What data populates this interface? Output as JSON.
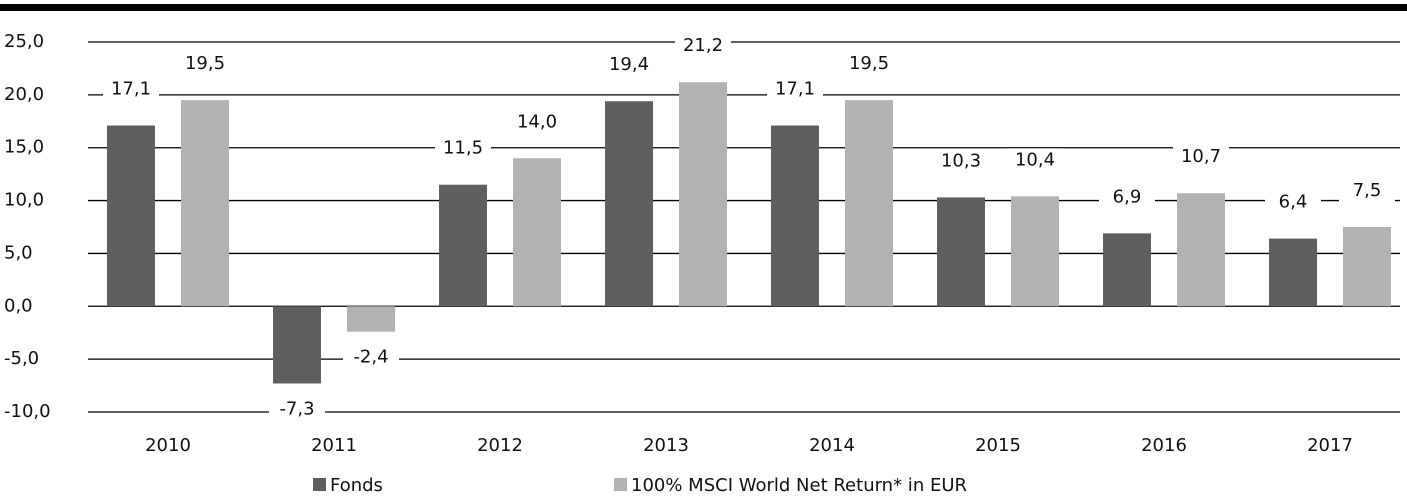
{
  "chart_data": {
    "type": "bar",
    "categories": [
      "2010",
      "2011",
      "2012",
      "2013",
      "2014",
      "2015",
      "2016",
      "2017"
    ],
    "series": [
      {
        "name": "Fonds",
        "color": "#5f5f5d",
        "values": [
          17.1,
          -7.3,
          11.5,
          19.4,
          17.1,
          10.3,
          6.9,
          6.4
        ],
        "value_labels": [
          "17,1",
          "-7,3",
          "11,5",
          "19,4",
          "17,1",
          "10,3",
          "6,9",
          "6,4"
        ]
      },
      {
        "name": "100% MSCI World Net Return* in EUR",
        "color": "#b2b2b2",
        "values": [
          19.5,
          -2.4,
          14.0,
          21.2,
          19.5,
          10.4,
          10.7,
          7.5
        ],
        "value_labels": [
          "19,5",
          "-2,4",
          "14,0",
          "21,2",
          "19,5",
          "10,4",
          "10,7",
          "7,5"
        ]
      }
    ],
    "ylim": [
      -10,
      25
    ],
    "yticks": [
      {
        "value": -10,
        "label": "-10,0"
      },
      {
        "value": -5,
        "label": "-5,0"
      },
      {
        "value": 0,
        "label": "0,0"
      },
      {
        "value": 5,
        "label": "5,0"
      },
      {
        "value": 10,
        "label": "10,0"
      },
      {
        "value": 15,
        "label": "15,0"
      },
      {
        "value": 20,
        "label": "20,0"
      },
      {
        "value": 25,
        "label": "25,0"
      }
    ],
    "grid": true
  }
}
